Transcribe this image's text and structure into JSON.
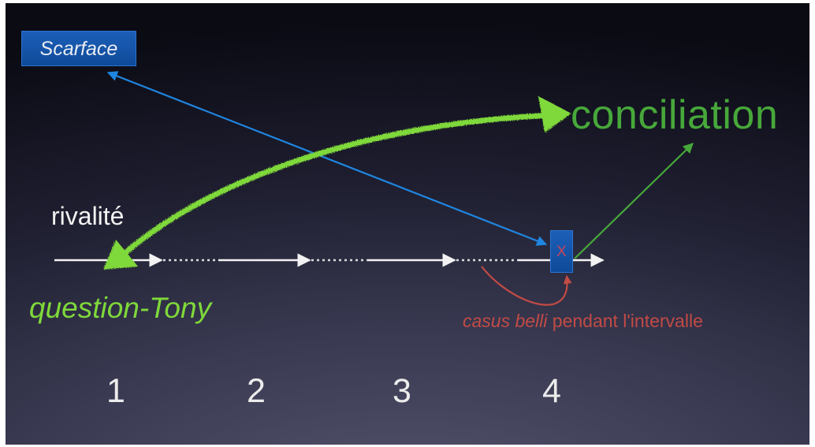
{
  "diagram": {
    "nodes": {
      "scarface": "Scarface",
      "conciliation": "conciliation",
      "rivalite": "rivalité",
      "question_tony": "question-Tony",
      "event_marker": "X"
    },
    "annotation": {
      "casus_belli_italic": "casus belli",
      "casus_belli_rest": " pendant l'intervalle"
    },
    "timeline_steps": [
      "1",
      "2",
      "3",
      "4"
    ],
    "colors": {
      "background": "#1e1e30",
      "blue": "#1f86e0",
      "green_bright": "#7fd93a",
      "green_dark": "#47a83a",
      "red": "#c24b45",
      "white": "#f2f2f2"
    }
  }
}
